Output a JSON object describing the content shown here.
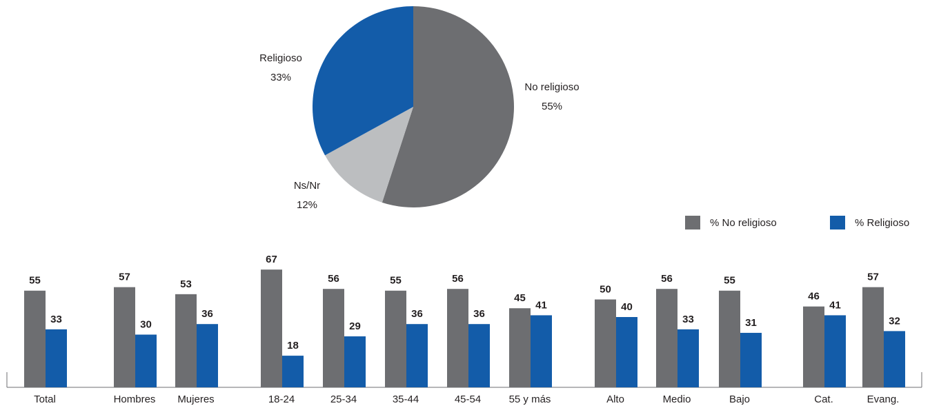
{
  "chart_data": [
    {
      "type": "pie",
      "categories": [
        "No religioso",
        "Ns/Nr",
        "Religioso"
      ],
      "values": [
        55,
        12,
        33
      ],
      "value_labels": [
        "55%",
        "12%",
        "33%"
      ],
      "colors": [
        "#6d6e71",
        "#bcbec0",
        "#135ca9"
      ]
    },
    {
      "type": "bar",
      "categories": [
        "Total",
        "Hombres",
        "Mujeres",
        "18-24",
        "25-34",
        "35-44",
        "45-54",
        "55 y más",
        "Alto",
        "Medio",
        "Bajo",
        "Cat.",
        "Evang."
      ],
      "series": [
        {
          "name": "% No religioso",
          "color": "#6d6e71",
          "values": [
            55,
            57,
            53,
            67,
            56,
            55,
            56,
            45,
            50,
            56,
            55,
            46,
            57
          ]
        },
        {
          "name": "% Religioso",
          "color": "#135ca9",
          "values": [
            33,
            30,
            36,
            18,
            29,
            36,
            36,
            41,
            40,
            33,
            31,
            41,
            32
          ]
        }
      ]
    }
  ]
}
